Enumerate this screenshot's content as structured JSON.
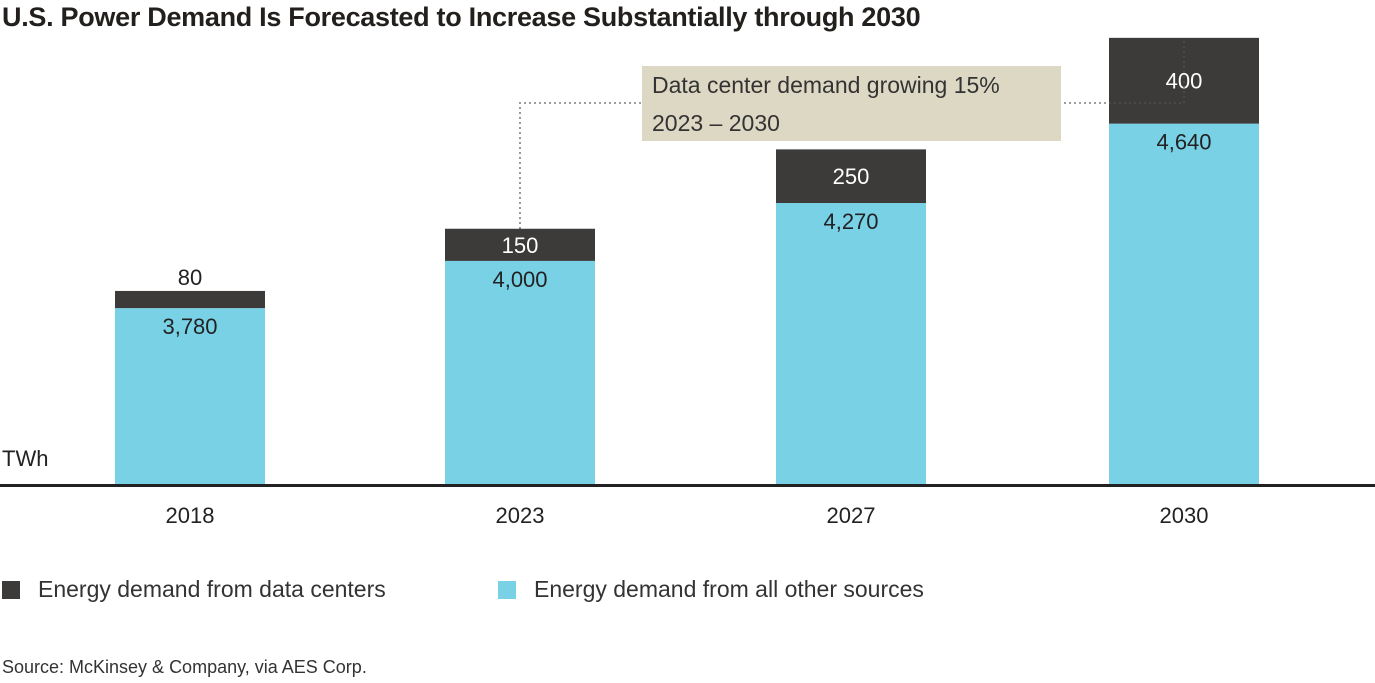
{
  "title": "U.S. Power Demand Is Forecasted to Increase Substantially through 2030",
  "source": "Source: McKinsey & Company, via AES Corp.",
  "colors": {
    "data_centers": "#3c3b39",
    "other_sources": "#79d1e6",
    "callout_bg": "#ddd8c4",
    "axis": "#222222"
  },
  "legend": [
    {
      "label": "Energy demand from data centers",
      "color": "#3c3b39"
    },
    {
      "label": "Energy demand from all other sources",
      "color": "#79d1e6"
    }
  ],
  "chart_data": {
    "type": "bar",
    "stacked": true,
    "categories": [
      "2018",
      "2023",
      "2027",
      "2030"
    ],
    "series": [
      {
        "name": "Energy demand from all other sources",
        "values": [
          3780,
          4000,
          4270,
          4640
        ],
        "labels": [
          "3,780",
          "4,000",
          "4,270",
          "4,640"
        ]
      },
      {
        "name": "Energy demand from data centers",
        "values": [
          80,
          150,
          250,
          400
        ],
        "labels": [
          "80",
          "150",
          "250",
          "400"
        ]
      }
    ],
    "ylabel": "TWh",
    "y_axis_values_shown": false,
    "grid": false,
    "annotation": {
      "text_line1": "Data center demand growing 15%",
      "text_line2": "2023 – 2030",
      "from": "2023",
      "to": "2030"
    },
    "legend_placement": "bottom"
  }
}
